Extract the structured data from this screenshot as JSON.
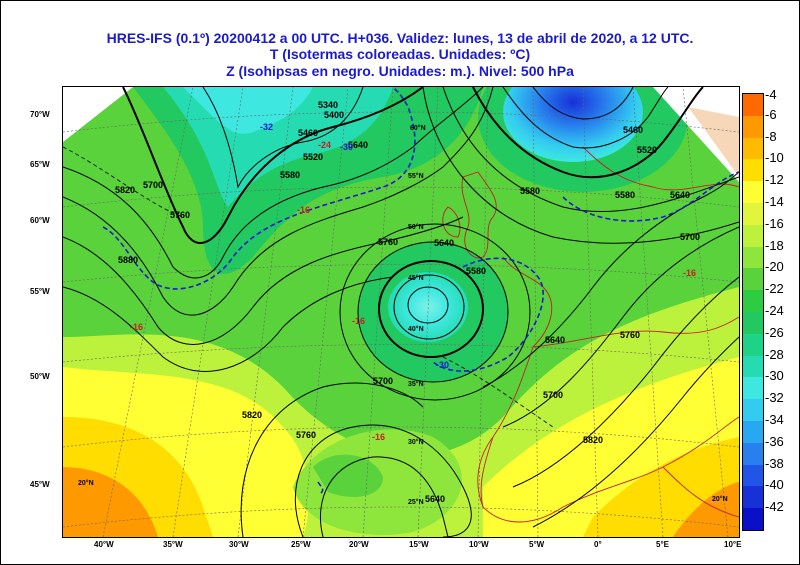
{
  "header": {
    "line1": "HRES-IFS (0.1º) 20200412 a 00 UTC.  H+036. Validez: lunes, 13 de abril de 2020,  a  12 UTC.",
    "line2": "T (Isotermas coloreadas. Unidades: ºC)",
    "line3": "Z (Isohipsas en negro. Unidades: m.).   Nivel: 500 hPa"
  },
  "lat_labels": [
    "70°W",
    "65°W",
    "60°W",
    "55°W",
    "50°W",
    "45°W"
  ],
  "lon_labels": [
    "40°W",
    "35°W",
    "30°W",
    "25°W",
    "20°W",
    "15°W",
    "10°W",
    "5°W",
    "0°",
    "5°E",
    "10°E"
  ],
  "grid_labels": [
    "60°N",
    "55°N",
    "50°N",
    "45°N",
    "40°N",
    "35°N",
    "30°N",
    "25°N",
    "20°N",
    "20°N"
  ],
  "contour_labels": [
    "5340",
    "5400",
    "5460",
    "5520",
    "5580",
    "5640",
    "5700",
    "5760",
    "5820",
    "5880",
    "5460",
    "5520",
    "5580",
    "5640",
    "5700",
    "5640",
    "5580",
    "5700",
    "5760",
    "5640",
    "5700",
    "5760",
    "5820",
    "5760",
    "5820",
    "5580",
    "5640"
  ],
  "isotherm_labels": [
    "-32",
    "-30",
    "-30",
    "-24",
    "-16",
    "-16",
    "-16",
    "-16",
    "-16"
  ],
  "legend": {
    "labels": [
      "-4",
      "-6",
      "-8",
      "-10",
      "-12",
      "-14",
      "-16",
      "-18",
      "-20",
      "-22",
      "-24",
      "-26",
      "-28",
      "-30",
      "-32",
      "-34",
      "-36",
      "-38",
      "-40",
      "-42"
    ],
    "colors": [
      "#ff6a00",
      "#ff9900",
      "#ffbb00",
      "#ffdd00",
      "#ffff33",
      "#e0f53c",
      "#bdf23c",
      "#8ee63c",
      "#5ad23c",
      "#2ecc42",
      "#22c860",
      "#1ed288",
      "#25dcb2",
      "#3ee8e0",
      "#33ccf0",
      "#28a8f0",
      "#2780ee",
      "#2055e8",
      "#1830d8",
      "#0a10c8"
    ]
  }
}
